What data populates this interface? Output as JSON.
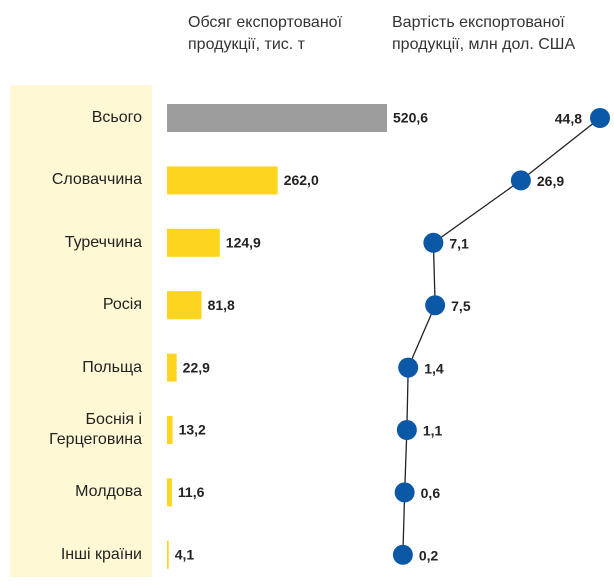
{
  "chart_data": {
    "type": "bar-dot",
    "categories": [
      "Всього",
      "Словаччина",
      "Туреччина",
      "Росія",
      "Польща",
      "Боснія і Герцеговина",
      "Молдова",
      "Інші країни"
    ],
    "series": [
      {
        "name": "Обсяг експортованої продукції, тис. т",
        "type": "bar",
        "colors": [
          "#9d9d9d",
          "#fdd51f",
          "#fdd51f",
          "#fdd51f",
          "#fdd51f",
          "#fdd51f",
          "#fdd51f",
          "#fdd51f"
        ],
        "values": [
          520.6,
          262.0,
          124.9,
          81.8,
          22.9,
          13.2,
          11.6,
          4.1
        ],
        "value_labels": [
          "520,6",
          "262,0",
          "124,9",
          "81,8",
          "22,9",
          "13,2",
          "11,6",
          "4,1"
        ]
      },
      {
        "name": "Вартість експортованої продукції, млн дол. США",
        "type": "dot",
        "color": "#0b58a6",
        "values": [
          44.8,
          26.9,
          7.1,
          7.5,
          1.4,
          1.1,
          0.6,
          0.2
        ],
        "value_labels": [
          "44,8",
          "26,9",
          "7,1",
          "7,5",
          "1,4",
          "1,1",
          "0,6",
          "0,2"
        ]
      }
    ]
  }
}
